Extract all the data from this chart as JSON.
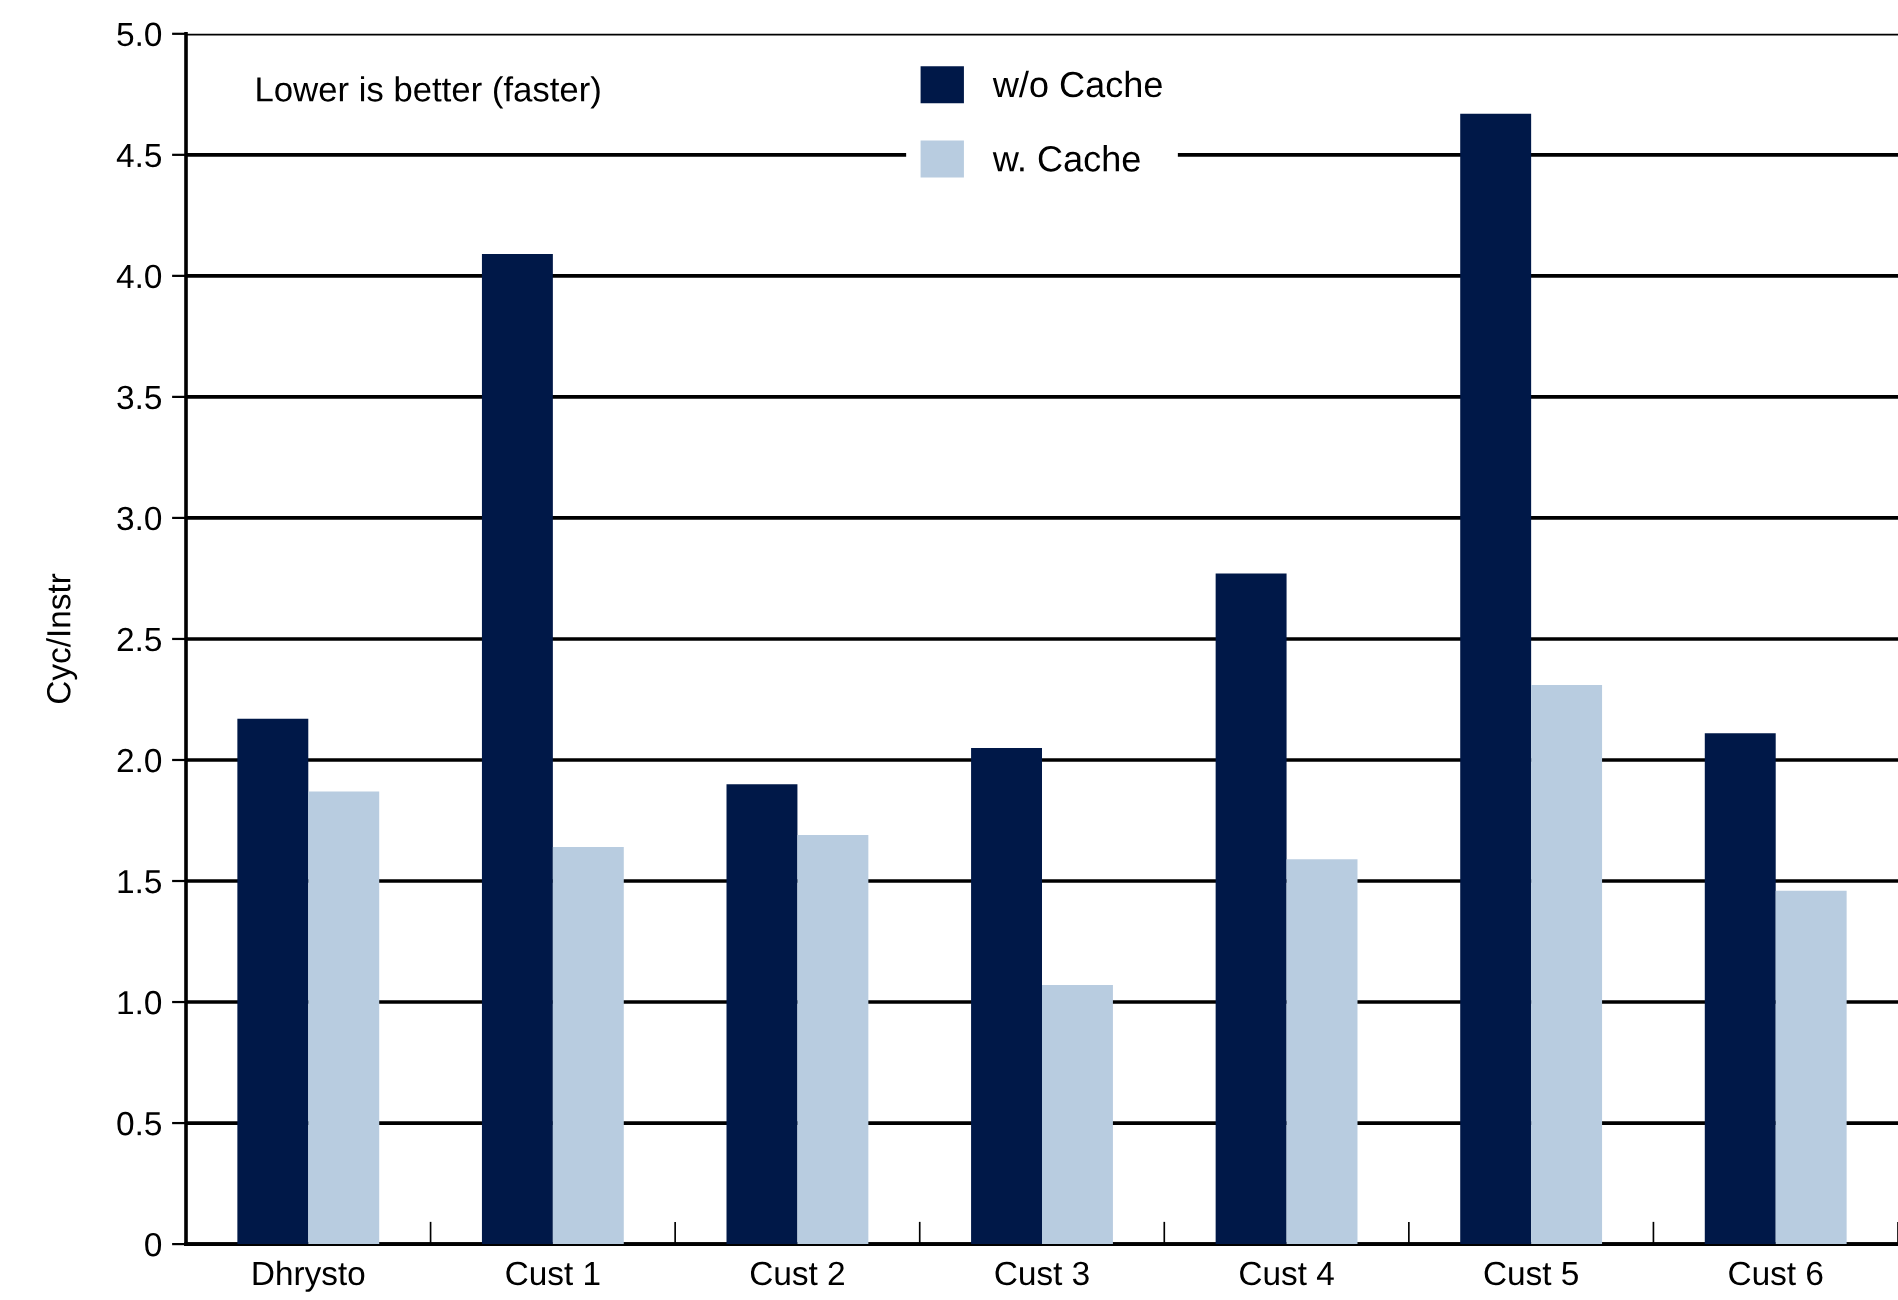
{
  "chart_data": {
    "type": "bar",
    "ylabel": "Cyc/Instr",
    "categories": [
      "Dhrysto",
      "Cust 1",
      "Cust 2",
      "Cust 3",
      "Cust 4",
      "Cust 5",
      "Cust 6"
    ],
    "series": [
      {
        "name": "w/o Cache",
        "color": "#001848",
        "values": [
          2.17,
          4.09,
          1.9,
          2.05,
          2.77,
          4.67,
          2.11
        ]
      },
      {
        "name": "w. Cache",
        "color": "#b8cce0",
        "values": [
          1.87,
          1.64,
          1.69,
          1.07,
          1.59,
          2.31,
          1.46
        ]
      }
    ],
    "ylim": [
      0,
      5.0
    ],
    "yticks": [
      0,
      {
        "value": 0.5,
        "label": "0.5"
      },
      {
        "value": 1.0,
        "label": "1.0"
      },
      {
        "value": 1.5,
        "label": "1.5"
      },
      {
        "value": 2.0,
        "label": "2.0"
      },
      {
        "value": 2.5,
        "label": "2.5"
      },
      {
        "value": 3.0,
        "label": "3.0"
      },
      {
        "value": 3.5,
        "label": "3.5"
      },
      {
        "value": 4.0,
        "label": "4.0"
      },
      {
        "value": 4.5,
        "label": "4.5"
      },
      {
        "value": 5.0,
        "label": "5.0"
      }
    ],
    "grid": "y",
    "legend": "top",
    "annotations": [
      "Lower is better (faster)"
    ]
  }
}
